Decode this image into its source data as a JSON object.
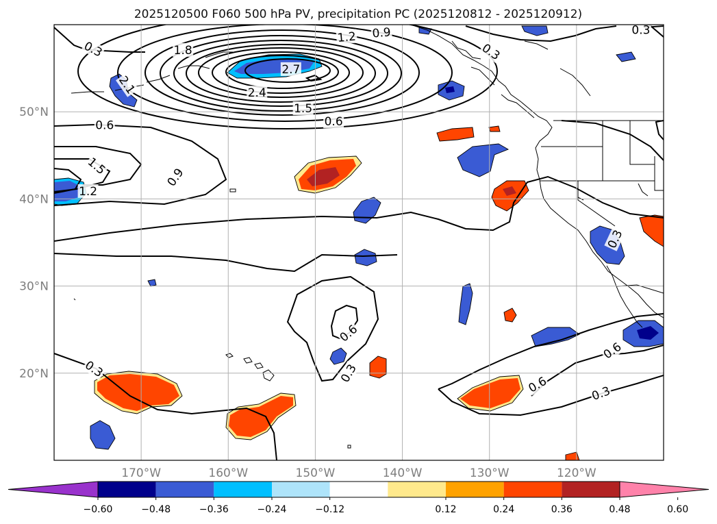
{
  "title": "2025120500 F060 500 hPa PV, precipitation PC (2025120812 - 2025120912)",
  "map": {
    "lon_range": [
      -180,
      -110
    ],
    "lat_range": [
      10,
      60
    ],
    "lat_ticks": [
      {
        "value": 20,
        "label": "20°N"
      },
      {
        "value": 30,
        "label": "30°N"
      },
      {
        "value": 40,
        "label": "40°N"
      },
      {
        "value": 50,
        "label": "50°N"
      }
    ],
    "lon_ticks": [
      {
        "value": -170,
        "label": "170°W"
      },
      {
        "value": -160,
        "label": "160°W"
      },
      {
        "value": -150,
        "label": "150°W"
      },
      {
        "value": -140,
        "label": "140°W"
      },
      {
        "value": -130,
        "label": "130°W"
      },
      {
        "value": -120,
        "label": "120°W"
      }
    ],
    "gridlines": true,
    "colors": {
      "pos_0_12": "#ffe98c",
      "pos_24": "#ffa200",
      "pos_36": "#ff4500",
      "pos_48": "#b22222",
      "pos_60": "#ff82aa",
      "neg_12": "#aee4fa",
      "neg_24": "#00bfff",
      "neg_36": "#3a5bd4",
      "neg_48": "#00008b"
    }
  },
  "pv_labels": [
    {
      "text": "0.3",
      "lon": -175.5,
      "lat": 57.2,
      "rot": 28
    },
    {
      "text": "1.8",
      "lon": -165.2,
      "lat": 57.1,
      "rot": 0
    },
    {
      "text": "1.2",
      "lon": -146.4,
      "lat": 58.6,
      "rot": -5
    },
    {
      "text": "0.9",
      "lon": -142.4,
      "lat": 59.1,
      "rot": -5
    },
    {
      "text": "0.3",
      "lon": -129.8,
      "lat": 56.9,
      "rot": 35
    },
    {
      "text": "0.3",
      "lon": -112.6,
      "lat": 59.4,
      "rot": 0
    },
    {
      "text": "2.7",
      "lon": -152.8,
      "lat": 54.9,
      "rot": 0
    },
    {
      "text": "2.1",
      "lon": -171.6,
      "lat": 53.1,
      "rot": 55
    },
    {
      "text": "2.4",
      "lon": -156.7,
      "lat": 52.2,
      "rot": 0
    },
    {
      "text": "1.5",
      "lon": -151.4,
      "lat": 50.4,
      "rot": 0
    },
    {
      "text": "0.6",
      "lon": -147.9,
      "lat": 48.9,
      "rot": 0
    },
    {
      "text": "0.6",
      "lon": -174.2,
      "lat": 48.5,
      "rot": 0
    },
    {
      "text": "1.5",
      "lon": -175.1,
      "lat": 43.8,
      "rot": 40
    },
    {
      "text": "0.9",
      "lon": -166.1,
      "lat": 42.5,
      "rot": -55
    },
    {
      "text": "1.2",
      "lon": -176.1,
      "lat": 40.9,
      "rot": 0
    },
    {
      "text": "0.6",
      "lon": -146.2,
      "lat": 24.6,
      "rot": -40
    },
    {
      "text": "0.3",
      "lon": -146.2,
      "lat": 20.0,
      "rot": -60
    },
    {
      "text": "0.3",
      "lon": -175.4,
      "lat": 20.5,
      "rot": 35
    },
    {
      "text": "0.6",
      "lon": -115.9,
      "lat": 22.6,
      "rot": -35
    },
    {
      "text": "0.6",
      "lon": -124.5,
      "lat": 18.7,
      "rot": -30
    },
    {
      "text": "0.3",
      "lon": -117.2,
      "lat": 17.7,
      "rot": -20
    },
    {
      "text": "0.3",
      "lon": -115.6,
      "lat": 35.4,
      "rot": -65
    }
  ],
  "colorbar": {
    "ticks": [
      "−0.60",
      "−0.48",
      "−0.36",
      "−0.24",
      "−0.12",
      "0.12",
      "0.24",
      "0.36",
      "0.48",
      "0.60"
    ],
    "bins": [
      "#9932cc",
      "#00008b",
      "#3a5bd4",
      "#00bfff",
      "#aee4fa",
      "#ffffff",
      "#ffe98c",
      "#ffa200",
      "#ff4500",
      "#b22222",
      "#ff82aa"
    ]
  }
}
